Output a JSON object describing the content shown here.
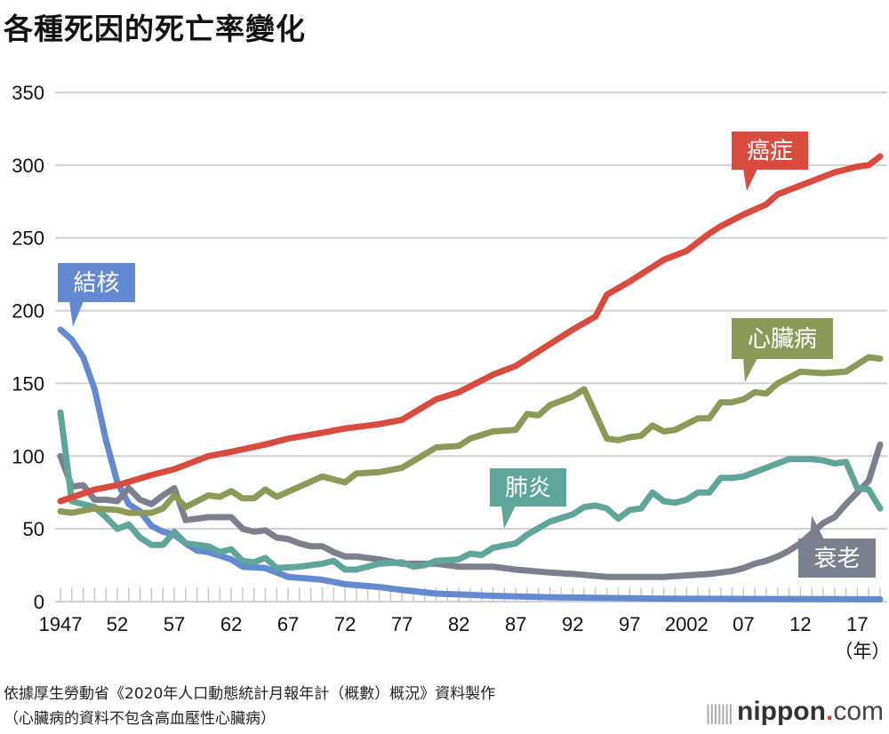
{
  "title": "各種死因的死亡率變化",
  "source_lines": [
    "依據厚生勞動省《2020年人口動態統計月報年計（概數）概況》資料製作",
    "（心臟病的資料不包含高血壓性心臟病）"
  ],
  "logo": {
    "name": "nippon",
    "dot": ".",
    "suffix": "com"
  },
  "chart_data": {
    "type": "line",
    "title": "各種死因的死亡率變化",
    "xlabel": "（年）",
    "ylabel": "",
    "xlim": [
      1947,
      2019
    ],
    "ylim": [
      0,
      350
    ],
    "yticks": [
      0,
      50,
      100,
      150,
      200,
      250,
      300,
      350
    ],
    "xticks": [
      1947,
      1952,
      1957,
      1962,
      1967,
      1972,
      1977,
      1982,
      1987,
      1992,
      1997,
      2002,
      2007,
      2012,
      2017
    ],
    "xtick_labels": [
      "1947",
      "52",
      "57",
      "62",
      "67",
      "72",
      "77",
      "82",
      "87",
      "92",
      "97",
      "2002",
      "07",
      "12",
      "17"
    ],
    "grid": true,
    "series": [
      {
        "name": "癌症",
        "color": "#d94b3f",
        "x": [
          1947,
          1950,
          1952,
          1955,
          1957,
          1960,
          1962,
          1965,
          1967,
          1970,
          1972,
          1975,
          1977,
          1980,
          1982,
          1985,
          1987,
          1990,
          1992,
          1994,
          1995,
          1997,
          2000,
          2002,
          2004,
          2005,
          2007,
          2009,
          2010,
          2012,
          2015,
          2017,
          2018,
          2019
        ],
        "y": [
          69,
          77,
          80,
          87,
          91,
          100,
          103,
          108,
          112,
          116,
          119,
          122,
          125,
          139,
          144,
          156,
          162,
          177,
          187,
          196,
          211,
          220,
          235,
          241,
          253,
          258,
          266,
          273,
          280,
          286,
          295,
          299,
          300,
          306
        ]
      },
      {
        "name": "心臟病",
        "color": "#8c9a59",
        "x": [
          1947,
          1948,
          1950,
          1952,
          1953,
          1955,
          1956,
          1957,
          1958,
          1960,
          1961,
          1962,
          1963,
          1964,
          1965,
          1966,
          1968,
          1970,
          1972,
          1973,
          1975,
          1977,
          1980,
          1982,
          1983,
          1985,
          1987,
          1988,
          1989,
          1990,
          1992,
          1993,
          1995,
          1996,
          1997,
          1998,
          1999,
          2000,
          2001,
          2003,
          2004,
          2005,
          2006,
          2007,
          2008,
          2009,
          2010,
          2012,
          2014,
          2016,
          2018,
          2019
        ],
        "y": [
          62,
          61,
          64,
          63,
          61,
          61,
          64,
          73,
          65,
          73,
          72,
          76,
          71,
          71,
          77,
          72,
          79,
          86,
          82,
          88,
          89,
          92,
          106,
          107,
          112,
          117,
          118,
          129,
          128,
          135,
          141,
          146,
          112,
          111,
          113,
          114,
          121,
          117,
          118,
          126,
          126,
          137,
          137,
          139,
          144,
          143,
          150,
          158,
          157,
          158,
          168,
          167
        ]
      },
      {
        "name": "肺炎",
        "color": "#5fa59a",
        "x": [
          1947,
          1948,
          1950,
          1951,
          1952,
          1953,
          1954,
          1955,
          1956,
          1957,
          1958,
          1960,
          1961,
          1962,
          1963,
          1964,
          1965,
          1966,
          1968,
          1970,
          1971,
          1972,
          1973,
          1975,
          1977,
          1978,
          1979,
          1980,
          1982,
          1983,
          1984,
          1985,
          1987,
          1988,
          1990,
          1992,
          1993,
          1994,
          1995,
          1996,
          1997,
          1998,
          1999,
          2000,
          2001,
          2002,
          2003,
          2004,
          2005,
          2006,
          2007,
          2008,
          2009,
          2011,
          2013,
          2014,
          2015,
          2016,
          2017,
          2018,
          2019
        ],
        "y": [
          130,
          69,
          65,
          58,
          50,
          53,
          44,
          39,
          39,
          48,
          40,
          38,
          34,
          36,
          28,
          27,
          30,
          23,
          24,
          26,
          28,
          22,
          22,
          26,
          27,
          24,
          25,
          28,
          29,
          33,
          32,
          37,
          40,
          46,
          55,
          60,
          65,
          66,
          64,
          57,
          63,
          64,
          75,
          69,
          68,
          70,
          75,
          75,
          85,
          85,
          86,
          89,
          92,
          98,
          98,
          97,
          95,
          96,
          78,
          77,
          64
        ]
      },
      {
        "name": "結核",
        "color": "#6389d1",
        "x": [
          1947,
          1948,
          1949,
          1950,
          1951,
          1952,
          1953,
          1954,
          1955,
          1956,
          1957,
          1958,
          1959,
          1960,
          1962,
          1963,
          1965,
          1967,
          1970,
          1972,
          1975,
          1977,
          1980,
          1985,
          1990,
          1995,
          2000,
          2010,
          2019
        ],
        "y": [
          187,
          180,
          168,
          146,
          111,
          82,
          67,
          62,
          52,
          48,
          46,
          40,
          35,
          34,
          29,
          24,
          23,
          17,
          15,
          12,
          10,
          8,
          5.5,
          4,
          3,
          2.5,
          2,
          1.8,
          1.6
        ]
      },
      {
        "name": "衰老",
        "color": "#7c7f8c",
        "x": [
          1947,
          1948,
          1949,
          1950,
          1951,
          1952,
          1953,
          1954,
          1955,
          1956,
          1957,
          1958,
          1960,
          1962,
          1963,
          1964,
          1965,
          1966,
          1967,
          1968,
          1969,
          1970,
          1971,
          1972,
          1973,
          1975,
          1977,
          1980,
          1982,
          1985,
          1987,
          1990,
          1992,
          1995,
          1997,
          2000,
          2002,
          2004,
          2006,
          2007,
          2008,
          2009,
          2010,
          2011,
          2012,
          2013,
          2014,
          2015,
          2016,
          2017,
          2018,
          2019
        ],
        "y": [
          100,
          79,
          80,
          70,
          70,
          69,
          78,
          70,
          67,
          73,
          78,
          56,
          58,
          58,
          50,
          48,
          49,
          44,
          43,
          40,
          38,
          38,
          34,
          31,
          31,
          29,
          26,
          26,
          24,
          24,
          22,
          20,
          19,
          17,
          17,
          17,
          18,
          19,
          21,
          23,
          26,
          28,
          31,
          35,
          40,
          47,
          54,
          58,
          67,
          75,
          83,
          108
        ]
      }
    ],
    "annotations": [
      {
        "series": "癌症",
        "label": "癌症"
      },
      {
        "series": "心臟病",
        "label": "心臟病"
      },
      {
        "series": "肺炎",
        "label": "肺炎"
      },
      {
        "series": "結核",
        "label": "結核"
      },
      {
        "series": "衰老",
        "label": "衰老"
      }
    ]
  }
}
